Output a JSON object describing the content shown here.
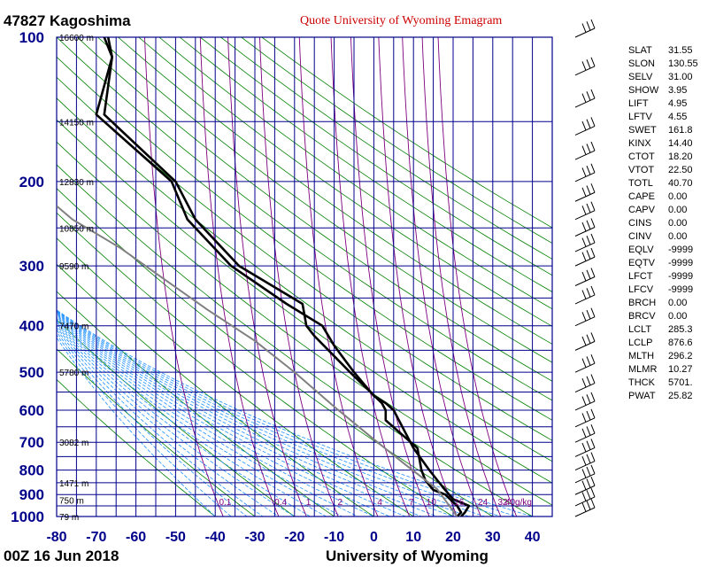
{
  "header": {
    "station": "47827  Kagoshima",
    "subtitle": "Quote University of Wyoming Emagram"
  },
  "footer": {
    "left": "00Z 16 Jun 2018",
    "right": "University of Wyoming"
  },
  "chart_data": {
    "type": "line",
    "x_ticks": [
      -80,
      -70,
      -60,
      -50,
      -40,
      -30,
      -20,
      -10,
      0,
      10,
      20,
      30,
      40
    ],
    "y_ticks": [
      100,
      200,
      300,
      400,
      500,
      600,
      700,
      800,
      900,
      1000
    ],
    "xlim": [
      -80,
      45
    ],
    "ylim": [
      1000,
      100
    ],
    "height_labels": [
      {
        "p": 100,
        "label": "16600 m"
      },
      {
        "p": 150,
        "label": "14150 m"
      },
      {
        "p": 200,
        "label": "12830 m"
      },
      {
        "p": 250,
        "label": "10850 m"
      },
      {
        "p": 300,
        "label": "9590 m"
      },
      {
        "p": 400,
        "label": "7470 m"
      },
      {
        "p": 500,
        "label": "5780 m"
      },
      {
        "p": 700,
        "label": "3082 m"
      },
      {
        "p": 850,
        "label": "1471 m"
      },
      {
        "p": 925,
        "label": "750 m"
      },
      {
        "p": 1000,
        "label": "79 m"
      }
    ],
    "mixing_ratio_labels": [
      "0.1",
      "0.4",
      "1",
      "2",
      "4",
      "7",
      "10",
      "16",
      "24",
      "32",
      "40g/kg"
    ],
    "mixing_ratio_x": [
      -38,
      -24,
      -17,
      -9,
      1,
      9,
      14,
      21,
      27,
      32,
      36
    ],
    "series": [
      {
        "role": "temperature",
        "points": [
          [
            -67,
            100
          ],
          [
            -66,
            110
          ],
          [
            -68,
            145
          ],
          [
            -50,
            200
          ],
          [
            -45,
            240
          ],
          [
            -34,
            300
          ],
          [
            -18,
            360
          ],
          [
            -17,
            400
          ],
          [
            -15,
            420
          ],
          [
            -6,
            500
          ],
          [
            2,
            580
          ],
          [
            3,
            600
          ],
          [
            3,
            630
          ],
          [
            11,
            720
          ],
          [
            12,
            800
          ],
          [
            13,
            840
          ],
          [
            15,
            880
          ],
          [
            18,
            900
          ],
          [
            21,
            950
          ],
          [
            22,
            980
          ],
          [
            21,
            1000
          ]
        ]
      },
      {
        "role": "dewpoint",
        "points": [
          [
            -68,
            100
          ],
          [
            -66,
            110
          ],
          [
            -70,
            145
          ],
          [
            -51,
            200
          ],
          [
            -47,
            240
          ],
          [
            -36,
            300
          ],
          [
            -22,
            360
          ],
          [
            -13,
            400
          ],
          [
            -10,
            440
          ],
          [
            -5,
            500
          ],
          [
            0,
            560
          ],
          [
            3,
            580
          ],
          [
            5,
            600
          ],
          [
            10,
            720
          ],
          [
            14,
            800
          ],
          [
            16,
            840
          ],
          [
            18,
            880
          ],
          [
            20,
            920
          ],
          [
            24,
            950
          ],
          [
            23,
            980
          ],
          [
            22,
            1000
          ]
        ]
      },
      {
        "role": "parcel",
        "points": [
          [
            21,
            1000
          ],
          [
            16,
            877
          ],
          [
            8,
            780
          ],
          [
            0,
            690
          ],
          [
            -10,
            590
          ],
          [
            -20,
            500
          ],
          [
            -30,
            430
          ],
          [
            -42,
            370
          ],
          [
            -54,
            315
          ],
          [
            -64,
            275
          ],
          [
            -76,
            240
          ],
          [
            -80,
            225
          ]
        ]
      }
    ],
    "wind_barbs_pressure": [
      100,
      120,
      140,
      160,
      180,
      200,
      220,
      240,
      260,
      280,
      300,
      330,
      360,
      400,
      450,
      500,
      550,
      600,
      650,
      700,
      750,
      800,
      850,
      900,
      950,
      1000
    ]
  },
  "stats": [
    {
      "k": "SLAT",
      "v": "31.55"
    },
    {
      "k": "SLON",
      "v": "130.55"
    },
    {
      "k": "SELV",
      "v": "31.00"
    },
    {
      "k": "SHOW",
      "v": "3.95"
    },
    {
      "k": "LIFT",
      "v": "4.95"
    },
    {
      "k": "LFTV",
      "v": "4.55"
    },
    {
      "k": "SWET",
      "v": "161.8"
    },
    {
      "k": "KINX",
      "v": "14.40"
    },
    {
      "k": "CTOT",
      "v": "18.20"
    },
    {
      "k": "VTOT",
      "v": "22.50"
    },
    {
      "k": "TOTL",
      "v": "40.70"
    },
    {
      "k": "CAPE",
      "v": "0.00"
    },
    {
      "k": "CAPV",
      "v": "0.00"
    },
    {
      "k": "CINS",
      "v": "0.00"
    },
    {
      "k": "CINV",
      "v": "0.00"
    },
    {
      "k": "EQLV",
      "v": "-9999"
    },
    {
      "k": "EQTV",
      "v": "-9999"
    },
    {
      "k": "LFCT",
      "v": "-9999"
    },
    {
      "k": "LFCV",
      "v": "-9999"
    },
    {
      "k": "BRCH",
      "v": "0.00"
    },
    {
      "k": "BRCV",
      "v": "0.00"
    },
    {
      "k": "LCLT",
      "v": "285.3"
    },
    {
      "k": "LCLP",
      "v": "876.6"
    },
    {
      "k": "MLTH",
      "v": "296.2"
    },
    {
      "k": "MLMR",
      "v": "10.27"
    },
    {
      "k": "THCK",
      "v": "5701."
    },
    {
      "k": "PWAT",
      "v": "25.82"
    }
  ],
  "colors": {
    "grid": "#00008b",
    "dry_adiabat": "#008000",
    "moist_adiabat": "#1e90ff",
    "mixing_ratio": "#800080",
    "sounding": "#000000",
    "parcel": "#808080"
  }
}
